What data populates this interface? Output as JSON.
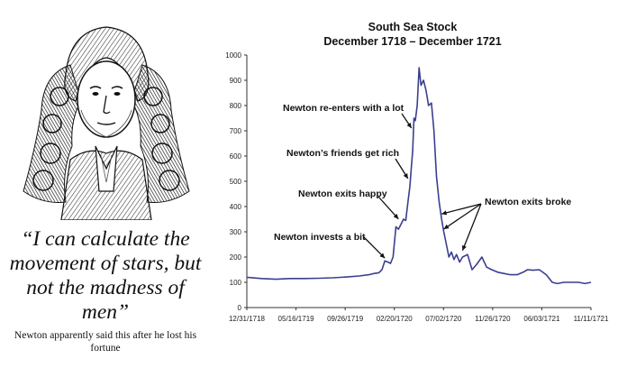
{
  "portrait": {
    "icon": "newton-portrait-engraving",
    "description_name": "Isaac Newton engraving"
  },
  "quote": {
    "text": "“I can calculate the movement of stars, but not the madness of men”",
    "caption": "Newton apparently said this after he lost his fortune"
  },
  "chart_data": {
    "type": "line",
    "title": "South Sea Stock",
    "subtitle": "December 1718 – December 1721",
    "xlabel": "",
    "ylabel": "",
    "ylim": [
      0,
      1000
    ],
    "yticks": [
      0,
      100,
      200,
      300,
      400,
      500,
      600,
      700,
      800,
      900,
      1000
    ],
    "xtick_labels": [
      "12/31/1718",
      "05/16/1719",
      "09/26/1719",
      "02/20/1720",
      "07/02/1720",
      "11/26/1720",
      "06/03/1721",
      "11/11/1721"
    ],
    "grid": false,
    "series": [
      {
        "color": "#3a3f8f",
        "x": [
          "1718-12-31",
          "1719-02-15",
          "1719-04-01",
          "1719-05-16",
          "1719-07-01",
          "1719-08-15",
          "1719-09-26",
          "1719-11-10",
          "1719-12-20",
          "1720-01-20",
          "1720-02-05",
          "1720-02-20",
          "1720-03-01",
          "1720-03-10",
          "1720-03-20",
          "1720-03-28",
          "1720-04-05",
          "1720-04-14",
          "1720-04-22",
          "1720-04-30",
          "1720-05-08",
          "1720-05-15",
          "1720-05-22",
          "1720-05-28",
          "1720-06-02",
          "1720-06-06",
          "1720-06-10",
          "1720-06-14",
          "1720-06-20",
          "1720-06-26",
          "1720-07-02",
          "1720-07-10",
          "1720-07-18",
          "1720-07-26",
          "1720-08-04",
          "1720-08-12",
          "1720-08-20",
          "1720-08-28",
          "1720-09-05",
          "1720-09-12",
          "1720-09-20",
          "1720-09-28",
          "1720-10-06",
          "1720-10-14",
          "1720-10-22",
          "1720-11-01",
          "1720-11-10",
          "1720-11-26",
          "1720-12-10",
          "1720-12-24",
          "1721-01-10",
          "1721-01-25",
          "1721-02-10",
          "1721-03-01",
          "1721-03-20",
          "1721-04-10",
          "1721-05-01",
          "1721-05-20",
          "1721-06-03",
          "1721-06-20",
          "1721-07-10",
          "1721-08-01",
          "1721-08-20",
          "1721-09-05",
          "1721-09-25",
          "1721-10-15",
          "1721-11-11",
          "1721-12-01",
          "1721-12-20"
        ],
        "y": [
          120,
          115,
          112,
          115,
          115,
          116,
          118,
          121,
          125,
          130,
          135,
          138,
          150,
          185,
          180,
          175,
          200,
          320,
          310,
          330,
          350,
          345,
          420,
          480,
          560,
          620,
          750,
          740,
          800,
          950,
          880,
          900,
          860,
          800,
          810,
          700,
          520,
          420,
          350,
          300,
          250,
          200,
          220,
          190,
          210,
          180,
          200,
          210,
          150,
          170,
          200,
          160,
          150,
          140,
          135,
          130,
          130,
          140,
          150,
          148,
          150,
          130,
          100,
          95,
          100,
          100,
          100,
          95,
          100
        ]
      }
    ],
    "annotations": [
      {
        "text": "Newton invests a bit",
        "target_x": "1720-03-10",
        "target_y": 185
      },
      {
        "text": "Newton exits happy",
        "target_x": "1720-04-22",
        "target_y": 340
      },
      {
        "text": "Newton’s friends get rich",
        "target_x": "1720-05-22",
        "target_y": 500
      },
      {
        "text": "Newton re-enters with a lot",
        "target_x": "1720-06-02",
        "target_y": 700
      },
      {
        "text": "Newton exits broke",
        "targets": [
          {
            "target_x": "1720-09-05",
            "target_y": 360
          },
          {
            "target_x": "1720-09-12",
            "target_y": 300
          },
          {
            "target_x": "1720-11-10",
            "target_y": 215
          }
        ]
      }
    ]
  }
}
